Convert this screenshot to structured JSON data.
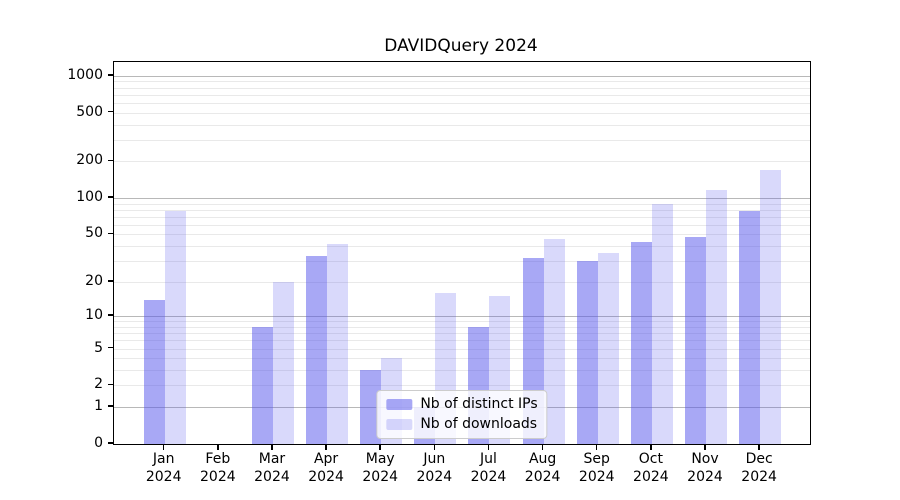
{
  "chart_data": {
    "type": "bar",
    "title": "DAVIDQuery 2024",
    "categories": [
      "Jan",
      "Feb",
      "Mar",
      "Apr",
      "May",
      "Jun",
      "Jul",
      "Aug",
      "Sep",
      "Oct",
      "Nov",
      "Dec"
    ],
    "category_year": "2024",
    "series": [
      {
        "name": "Nb of distinct IPs",
        "color": "rgba(81,81,235,0.5)",
        "values": [
          14,
          0,
          8,
          33,
          3,
          1,
          8,
          32,
          30,
          43,
          48,
          78
        ]
      },
      {
        "name": "Nb of downloads",
        "color": "rgba(81,81,235,0.22)",
        "values": [
          78,
          0,
          20,
          42,
          4,
          16,
          15,
          46,
          35,
          90,
          116,
          170
        ]
      }
    ],
    "yscale": "log1p",
    "y_ticks": [
      0,
      1,
      2,
      5,
      10,
      20,
      50,
      100,
      200,
      500,
      1000
    ],
    "ylim": [
      0,
      1300
    ],
    "grid": "on",
    "legend_position": "lower center",
    "colors": {
      "bar_dark_rendered": "#a8a8f5",
      "bar_light_rendered": "#d9d9fb",
      "grid_major": "#b8b8b8",
      "grid_minor": "#e9e9e9",
      "spine": "#000000"
    }
  }
}
